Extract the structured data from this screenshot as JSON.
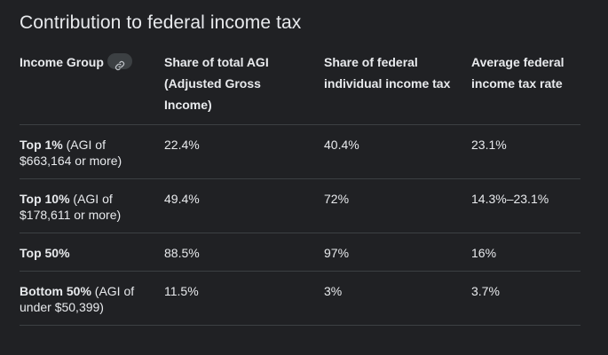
{
  "title": "Contribution to federal income tax",
  "table": {
    "headers": [
      "Income Group",
      "Share of total AGI (Adjusted Gross Income)",
      "Share of federal individual income tax",
      "Average federal income tax rate"
    ],
    "rows": [
      {
        "group": "Top 1%",
        "note": " (AGI of $663,164 or more)",
        "agi_share": "22.4%",
        "tax_share": "40.4%",
        "avg_rate": "23.1%"
      },
      {
        "group": "Top 10%",
        "note": " (AGI of $178,611 or more)",
        "agi_share": "49.4%",
        "tax_share": "72%",
        "avg_rate": "14.3%–23.1%"
      },
      {
        "group": "Top 50%",
        "note": "",
        "agi_share": "88.5%",
        "tax_share": "97%",
        "avg_rate": "16%"
      },
      {
        "group": "Bottom 50%",
        "note": " (AGI of under $50,399)",
        "agi_share": "11.5%",
        "tax_share": "3%",
        "avg_rate": "3.7%"
      }
    ]
  },
  "colors": {
    "background": "#202124",
    "text": "#e8eaed",
    "divider": "#3c4043",
    "chip": "#3c4043"
  },
  "icons": {
    "source_link": "link-icon"
  }
}
